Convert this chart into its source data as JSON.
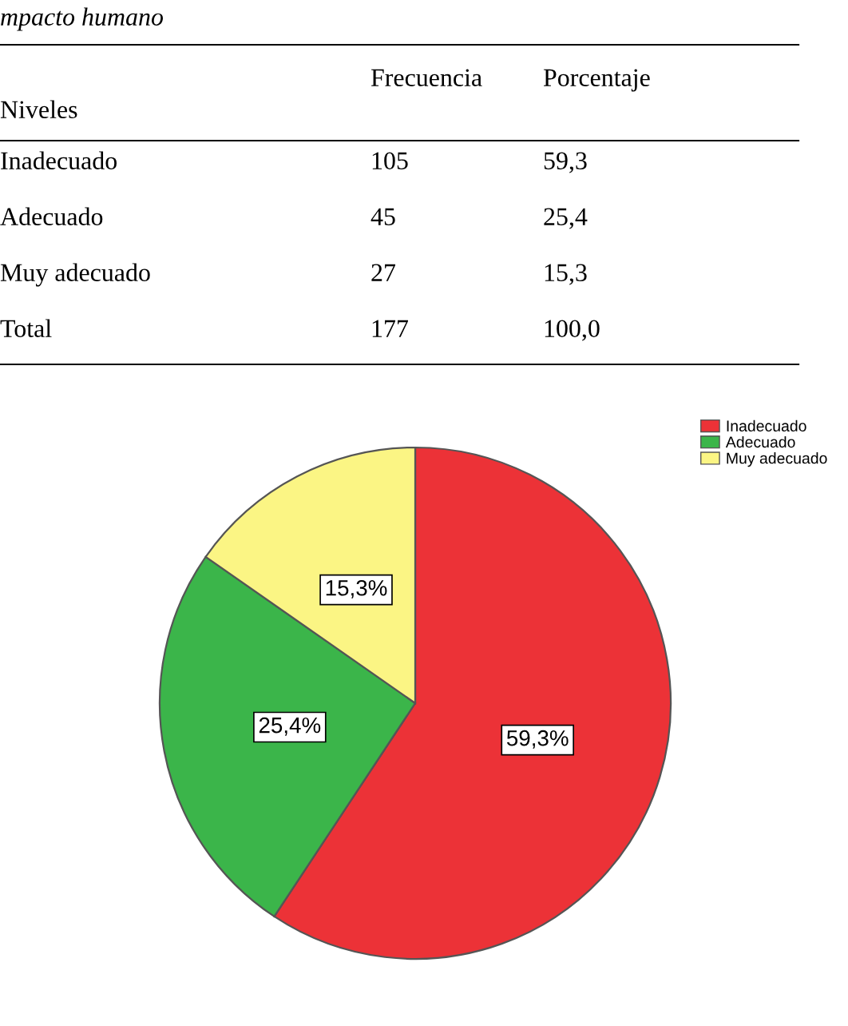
{
  "chart_data": [
    {
      "type": "other",
      "title": "mpacto humano",
      "ylabel": "Niveles",
      "data_labels": true,
      "categories": [
        "Inadecuado",
        "Adecuado",
        "Muy adecuado",
        "Total"
      ],
      "series": [
        {
          "name": "Frecuencia",
          "values": [
            105,
            45,
            27,
            177
          ]
        },
        {
          "name": "Porcentaje",
          "values": [
            59.3,
            25.4,
            15.3,
            100.0
          ],
          "value_labels": [
            "59,3",
            "25,4",
            "15,3",
            "100,0"
          ]
        }
      ]
    },
    {
      "type": "pie",
      "categories": [
        "Inadecuado",
        "Adecuado",
        "Muy adecuado"
      ],
      "values": [
        59.3,
        25.4,
        15.3
      ],
      "colors": [
        "#ec3237",
        "#3bb54a",
        "#fbf584"
      ],
      "value_labels": [
        "59,3%",
        "25,4%",
        "15,3%"
      ],
      "legend": "top right"
    }
  ]
}
